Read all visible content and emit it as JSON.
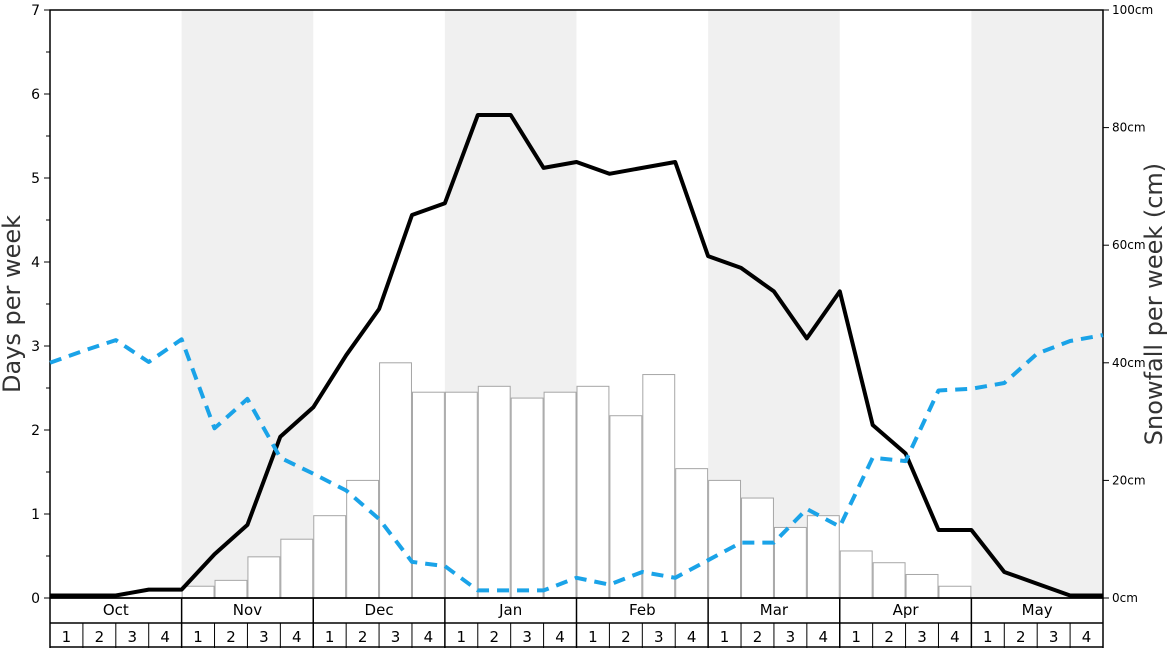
{
  "chart_data": {
    "type": "bar+line",
    "y_left_label": "Days per week",
    "y_right_label": "Snowfall per week (cm)",
    "y_left_range": [
      0,
      7
    ],
    "y_left_ticks": [
      "0",
      "1",
      "2",
      "3",
      "4",
      "5",
      "6",
      "7"
    ],
    "y_right_range": [
      0,
      100
    ],
    "y_right_ticks": [
      "0cm",
      "20cm",
      "40cm",
      "60cm",
      "80cm",
      "100cm"
    ],
    "months": [
      "Oct",
      "Nov",
      "Dec",
      "Jan",
      "Feb",
      "Mar",
      "Apr",
      "May"
    ],
    "week_labels": [
      "1",
      "2",
      "3",
      "4"
    ],
    "shaded_months": [
      "Nov",
      "Jan",
      "Mar",
      "May"
    ],
    "colors": {
      "shade": "#f0f0f0",
      "bar_fill": "#ffffff",
      "bar_stroke": "#a6a6a6",
      "snow_days_line": "#000000",
      "dashed_line": "#1aa3e8"
    },
    "series": [
      {
        "kind": "bars",
        "axis": "right",
        "unit": "cm",
        "values": [
          0,
          0,
          0,
          0,
          2,
          3,
          7,
          10,
          14,
          20,
          40,
          35,
          35,
          36,
          34,
          35,
          36,
          31,
          38,
          22,
          20,
          17,
          12,
          14,
          8,
          6,
          4,
          2,
          0,
          0,
          0,
          0
        ]
      },
      {
        "kind": "line",
        "axis": "left",
        "style": "solid",
        "values": [
          0.03,
          0.03,
          0.03,
          0.1,
          0.1,
          0.52,
          0.87,
          1.92,
          2.27,
          2.89,
          3.44,
          4.56,
          4.7,
          5.75,
          5.75,
          5.12,
          5.19,
          5.05,
          5.12,
          5.19,
          4.07,
          3.93,
          3.65,
          3.09,
          3.65,
          2.06,
          1.72,
          0.81,
          0.81,
          0.31,
          0.17,
          0.03,
          0.03
        ]
      },
      {
        "kind": "line",
        "axis": "left",
        "style": "dashed",
        "values": [
          2.8,
          2.94,
          3.07,
          2.81,
          3.08,
          2.02,
          2.37,
          1.67,
          1.48,
          1.28,
          0.94,
          0.43,
          0.38,
          0.09,
          0.09,
          0.09,
          0.24,
          0.16,
          0.31,
          0.24,
          0.45,
          0.66,
          0.66,
          1.06,
          0.85,
          1.67,
          1.63,
          2.47,
          2.49,
          2.56,
          2.91,
          3.06,
          3.13
        ]
      }
    ]
  }
}
